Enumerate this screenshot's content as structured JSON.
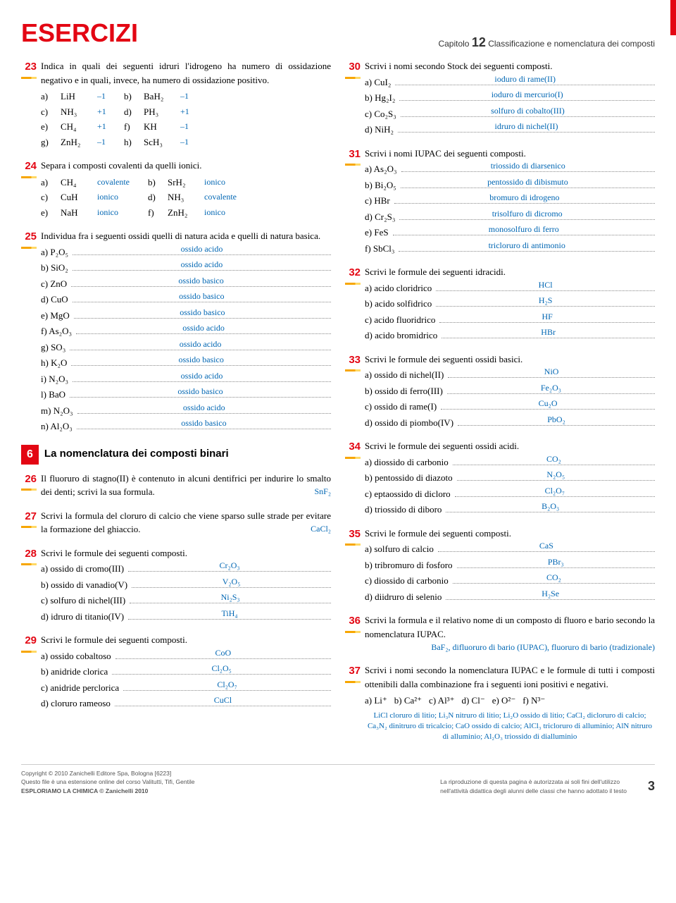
{
  "header": {
    "title": "ESERCIZI",
    "chapter_label": "Capitolo",
    "chapter_num": "12",
    "chapter_title": "Classificazione e nomenclatura dei composti"
  },
  "section6": {
    "num": "6",
    "title": "La nomenclatura dei composti binari"
  },
  "ex23": {
    "num": "23",
    "text": "Indica in quali dei seguenti idruri l'idrogeno ha numero di ossidazione negativo e in quali, invece, ha numero di ossidazione positivo.",
    "items": [
      {
        "l": "a)",
        "f": "LiH",
        "a": "–1"
      },
      {
        "l": "b)",
        "f": "BaH₂",
        "a": "–1"
      },
      {
        "l": "c)",
        "f": "NH₃",
        "a": "+1"
      },
      {
        "l": "d)",
        "f": "PH₃",
        "a": "+1"
      },
      {
        "l": "e)",
        "f": "CH₄",
        "a": "+1"
      },
      {
        "l": "f)",
        "f": "KH",
        "a": "–1"
      },
      {
        "l": "g)",
        "f": "ZnH₂",
        "a": "–1"
      },
      {
        "l": "h)",
        "f": "ScH₃",
        "a": "–1"
      }
    ]
  },
  "ex24": {
    "num": "24",
    "text": "Separa i composti covalenti da quelli ionici.",
    "items": [
      {
        "l": "a)",
        "f": "CH₄",
        "a": "covalente"
      },
      {
        "l": "b)",
        "f": "SrH₂",
        "a": "ionico"
      },
      {
        "l": "c)",
        "f": "CuH",
        "a": "ionico"
      },
      {
        "l": "d)",
        "f": "NH₃",
        "a": "covalente"
      },
      {
        "l": "e)",
        "f": "NaH",
        "a": "ionico"
      },
      {
        "l": "f)",
        "f": "ZnH₂",
        "a": "ionico"
      }
    ]
  },
  "ex25": {
    "num": "25",
    "text": "Individua fra i seguenti ossidi quelli di natura acida e quelli di natura basica.",
    "items": [
      {
        "l": "a)",
        "f": "P₂O₅",
        "a": "ossido acido"
      },
      {
        "l": "b)",
        "f": "SiO₂",
        "a": "ossido acido"
      },
      {
        "l": "c)",
        "f": "ZnO",
        "a": "ossido basico"
      },
      {
        "l": "d)",
        "f": "CuO",
        "a": "ossido basico"
      },
      {
        "l": "e)",
        "f": "MgO",
        "a": "ossido basico"
      },
      {
        "l": "f)",
        "f": "As₂O₃",
        "a": "ossido acido"
      },
      {
        "l": "g)",
        "f": "SO₃",
        "a": "ossido acido"
      },
      {
        "l": "h)",
        "f": "K₂O",
        "a": "ossido basico"
      },
      {
        "l": "i)",
        "f": "N₂O₃",
        "a": "ossido acido"
      },
      {
        "l": "l)",
        "f": "BaO",
        "a": "ossido basico"
      },
      {
        "l": "m)",
        "f": "N₂O₃",
        "a": "ossido acido"
      },
      {
        "l": "n)",
        "f": "Al₂O₃",
        "a": "ossido basico"
      }
    ]
  },
  "ex26": {
    "num": "26",
    "text": "Il fluoruro di stagno(II) è contenuto in alcuni dentifrici per indurire lo smalto dei denti; scrivi la sua formula.",
    "ans": "SnF₂"
  },
  "ex27": {
    "num": "27",
    "text": "Scrivi la formula del cloruro di calcio che viene sparso sulle strade per evitare la formazione del ghiaccio.",
    "ans": "CaCl₂"
  },
  "ex28": {
    "num": "28",
    "text": "Scrivi le formule dei seguenti composti.",
    "items": [
      {
        "l": "a)",
        "name": "ossido di cromo(III)",
        "a": "Cr₂O₃"
      },
      {
        "l": "b)",
        "name": "ossido di vanadio(V)",
        "a": "V₂O₅"
      },
      {
        "l": "c)",
        "name": "solfuro di nichel(III)",
        "a": "Ni₂S₃"
      },
      {
        "l": "d)",
        "name": "idruro di titanio(IV)",
        "a": "TiH₄"
      }
    ]
  },
  "ex29": {
    "num": "29",
    "text": "Scrivi le formule dei seguenti composti.",
    "items": [
      {
        "l": "a)",
        "name": "ossido cobaltoso",
        "a": "CoO"
      },
      {
        "l": "b)",
        "name": "anidride clorica",
        "a": "Cl₂O₅"
      },
      {
        "l": "c)",
        "name": "anidride perclorica",
        "a": "Cl₂O₇"
      },
      {
        "l": "d)",
        "name": "cloruro rameoso",
        "a": "CuCl"
      }
    ]
  },
  "ex30": {
    "num": "30",
    "text": "Scrivi i nomi secondo Stock dei seguenti composti.",
    "items": [
      {
        "l": "a)",
        "f": "CuI₂",
        "a": "ioduro di rame(II)"
      },
      {
        "l": "b)",
        "f": "Hg₂I₂",
        "a": "ioduro di mercurio(I)"
      },
      {
        "l": "c)",
        "f": "Co₂S₃",
        "a": "solfuro di cobalto(III)"
      },
      {
        "l": "d)",
        "f": "NiH₂",
        "a": "idruro di nichel(II)"
      }
    ]
  },
  "ex31": {
    "num": "31",
    "text": "Scrivi i nomi IUPAC dei seguenti composti.",
    "items": [
      {
        "l": "a)",
        "f": "As₂O₃",
        "a": "triossido di diarsenico"
      },
      {
        "l": "b)",
        "f": "Bi₂O₅",
        "a": "pentossido di dibismuto"
      },
      {
        "l": "c)",
        "f": "HBr",
        "a": "bromuro di idrogeno"
      },
      {
        "l": "d)",
        "f": "Cr₂S₃",
        "a": "trisolfuro di dicromo"
      },
      {
        "l": "e)",
        "f": "FeS",
        "a": "monosolfuro di ferro"
      },
      {
        "l": "f)",
        "f": "SbCl₃",
        "a": "tricloruro di antimonio"
      }
    ]
  },
  "ex32": {
    "num": "32",
    "text": "Scrivi le formule dei seguenti idracidi.",
    "items": [
      {
        "l": "a)",
        "name": "acido cloridrico",
        "a": "HCl"
      },
      {
        "l": "b)",
        "name": "acido solfidrico",
        "a": "H₂S"
      },
      {
        "l": "c)",
        "name": "acido fluoridrico",
        "a": "HF"
      },
      {
        "l": "d)",
        "name": "acido bromidrico",
        "a": "HBr"
      }
    ]
  },
  "ex33": {
    "num": "33",
    "text": "Scrivi le formule dei seguenti ossidi basici.",
    "items": [
      {
        "l": "a)",
        "name": "ossido di nichel(II)",
        "a": "NiO"
      },
      {
        "l": "b)",
        "name": "ossido di ferro(III)",
        "a": "Fe₂O₃"
      },
      {
        "l": "c)",
        "name": "ossido di rame(I)",
        "a": "Cu₂O"
      },
      {
        "l": "d)",
        "name": "ossido di piombo(IV)",
        "a": "PbO₂"
      }
    ]
  },
  "ex34": {
    "num": "34",
    "text": "Scrivi le formule dei seguenti ossidi acidi.",
    "items": [
      {
        "l": "a)",
        "name": "diossido di carbonio",
        "a": "CO₂"
      },
      {
        "l": "b)",
        "name": "pentossido di diazoto",
        "a": "N₂O₅"
      },
      {
        "l": "c)",
        "name": "eptaossido di dicloro",
        "a": "Cl₂O₇"
      },
      {
        "l": "d)",
        "name": "triossido di diboro",
        "a": "B₂O₃"
      }
    ]
  },
  "ex35": {
    "num": "35",
    "text": "Scrivi le formule dei seguenti composti.",
    "items": [
      {
        "l": "a)",
        "name": "solfuro di calcio",
        "a": "CaS"
      },
      {
        "l": "b)",
        "name": "tribromuro di fosforo",
        "a": "PBr₃"
      },
      {
        "l": "c)",
        "name": "diossido di carbonio",
        "a": "CO₂"
      },
      {
        "l": "d)",
        "name": "diidruro di selenio",
        "a": "H₂Se"
      }
    ]
  },
  "ex36": {
    "num": "36",
    "text": "Scrivi la formula e il relativo nome di un composto di fluoro e bario secondo la nomenclatura IUPAC.",
    "ans": "BaF₂, difluoruro di bario (IUPAC), fluoruro di bario (tradizionale)"
  },
  "ex37": {
    "num": "37",
    "text": "Scrivi i nomi secondo la nomenclatura IUPAC e le formule di tutti i composti ottenibili dalla combinazione fra i seguenti ioni positivi e negativi.",
    "ions": [
      {
        "l": "a)",
        "f": "Li⁺"
      },
      {
        "l": "b)",
        "f": "Ca²⁺"
      },
      {
        "l": "c)",
        "f": "Al³⁺"
      },
      {
        "l": "d)",
        "f": "Cl⁻"
      },
      {
        "l": "e)",
        "f": "O²⁻"
      },
      {
        "l": "f)",
        "f": "N³⁻"
      }
    ],
    "ans": "LiCl cloruro di litio; Li₃N nitruro di litio; Li₂O ossido di litio; CaCl₂ dicloruro di calcio; Ca₃N₂ dinitruro di tricalcio; CaO ossido di calcio; AlCl₃ tricloruro di alluminio; AlN nitruro di alluminio; Al₂O₃ triossido di dialluminio"
  },
  "footer": {
    "left1": "Copyright © 2010 Zanichelli Editore Spa, Bologna [6223]",
    "left2": "Questo file è una estensione online del corso Valitutti, Tifi, Gentile",
    "left3": "ESPLORIAMO LA CHIMICA © Zanichelli 2010",
    "right1": "La riproduzione di questa pagina è autorizzata ai soli fini dell'utilizzo",
    "right2": "nell'attività didattica degli alunni delle classi che hanno adottato il testo",
    "pnum": "3"
  }
}
